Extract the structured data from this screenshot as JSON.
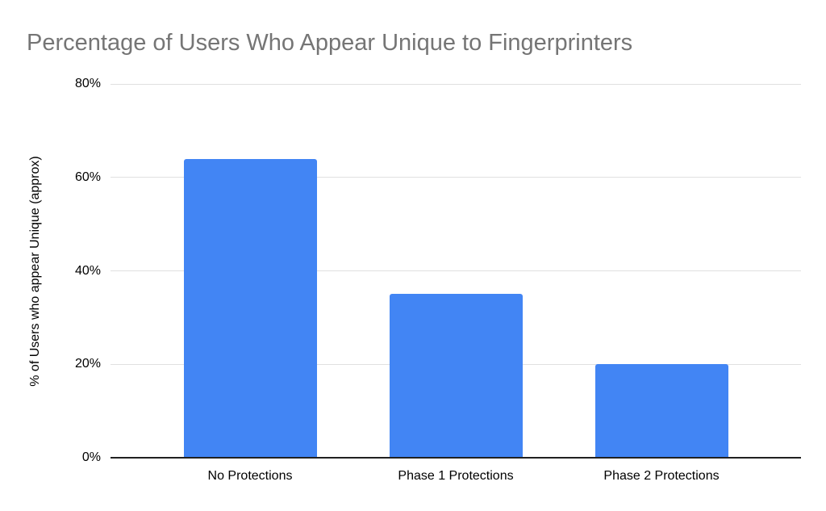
{
  "chart_data": {
    "type": "bar",
    "title": "Percentage of Users Who Appear Unique to Fingerprinters",
    "categories": [
      "No Protections",
      "Phase 1 Protections",
      "Phase 2 Protections"
    ],
    "values": [
      64,
      35,
      20
    ],
    "xlabel": "",
    "ylabel": "% of Users who appear Unique (approx)",
    "ylim": [
      0,
      80
    ],
    "ytick_values": [
      0,
      20,
      40,
      60,
      80
    ],
    "ytick_labels": [
      "0%",
      "20%",
      "40%",
      "60%",
      "80%"
    ],
    "grid": true,
    "legend": "none",
    "colors": {
      "bar": "#4285F4",
      "title": "#757575",
      "gridline": "#E0E0E0",
      "axis_line": "#212121",
      "tick_label": "#000000",
      "background": "#FFFFFF"
    }
  }
}
